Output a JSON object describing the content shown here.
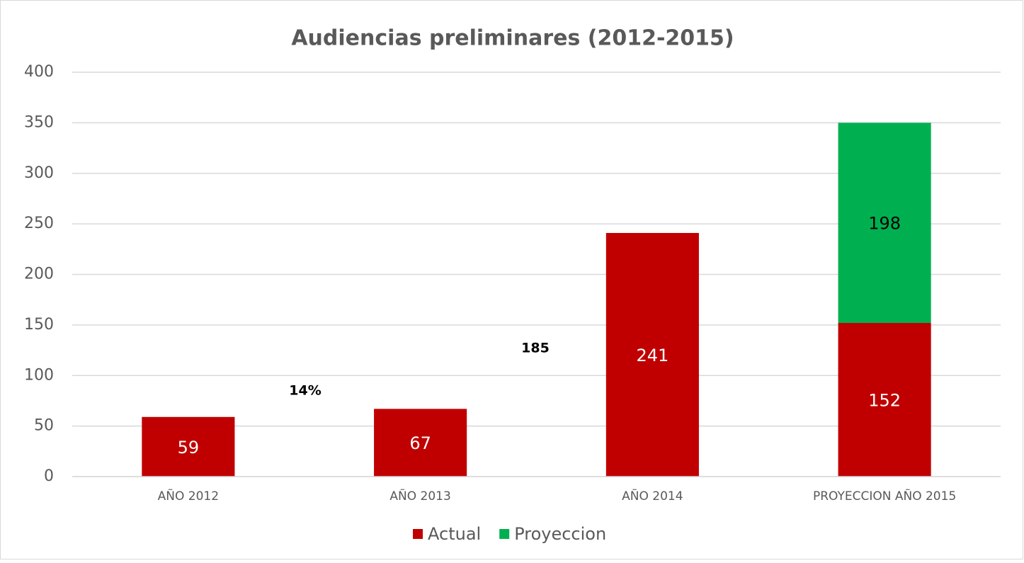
{
  "chart_data": {
    "type": "stacked_bar",
    "title": "Audiencias preliminares (2012-2015)",
    "categories": [
      "AÑO 2012",
      "AÑO 2013",
      "AÑO 2014",
      "PROYECCION AÑO 2015"
    ],
    "series": [
      {
        "name": "Actual",
        "color": "#c00000",
        "values": [
          59,
          67,
          241,
          152
        ]
      },
      {
        "name": "Proyeccion",
        "color": "#00b050",
        "values": [
          null,
          null,
          null,
          198
        ]
      }
    ],
    "ylim": [
      0,
      400
    ],
    "yticks": [
      0,
      50,
      100,
      150,
      200,
      250,
      300,
      350,
      400
    ],
    "grid": true,
    "legend": "bottom",
    "annotations": [
      "14%",
      "185"
    ]
  }
}
